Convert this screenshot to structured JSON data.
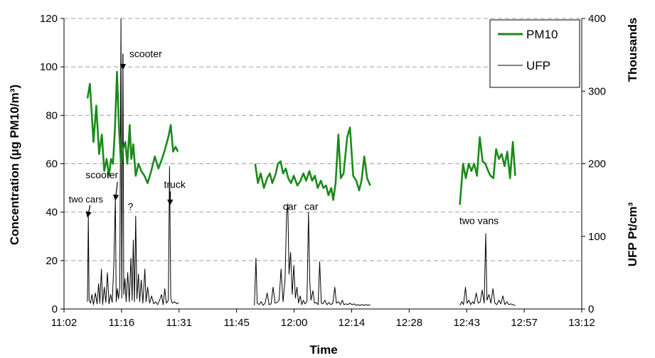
{
  "chart_data": {
    "type": "line",
    "xlabel": "Time",
    "ylabel_left": "Concentration (µg PM10/m³)",
    "ylabel_right": "UFP Pt/cm³",
    "ylabel_right_multiplier": "Thousands",
    "x_ticks": [
      "11:02",
      "11:16",
      "11:31",
      "11:45",
      "12:00",
      "12:14",
      "12:28",
      "12:43",
      "12:57",
      "13:12"
    ],
    "y_left_ticks": [
      "0",
      "20",
      "40",
      "60",
      "80",
      "100",
      "120"
    ],
    "y_right_ticks": [
      "0",
      "100",
      "200",
      "300",
      "400"
    ],
    "xlim_minutes_after_11_02": [
      0,
      130
    ],
    "ylim_left": [
      0,
      120
    ],
    "ylim_right": [
      0,
      400
    ],
    "grid": "horizontal dashed",
    "legend_position": "top-right",
    "legend": [
      {
        "name": "PM10",
        "color": "#1a8a1a"
      },
      {
        "name": "UFP",
        "color": "#000000"
      }
    ],
    "series": [
      {
        "name": "PM10",
        "axis": "left",
        "color": "#1a8a1a",
        "segments": [
          [
            [
              5.9,
              87
            ],
            [
              6.5,
              93
            ],
            [
              7.4,
              69
            ],
            [
              8.1,
              84
            ],
            [
              8.8,
              64
            ],
            [
              9.5,
              72
            ],
            [
              10.1,
              57
            ],
            [
              10.7,
              62
            ],
            [
              11.3,
              55
            ],
            [
              11.8,
              62
            ],
            [
              12.3,
              60
            ],
            [
              12.8,
              75
            ],
            [
              13.3,
              98
            ],
            [
              13.8,
              75
            ],
            [
              14.3,
              60
            ],
            [
              14.8,
              66
            ],
            [
              15.4,
              69
            ],
            [
              15.9,
              60
            ],
            [
              16.5,
              76
            ],
            [
              16.9,
              62
            ],
            [
              17.4,
              68
            ],
            [
              18.0,
              55
            ],
            [
              18.7,
              60
            ],
            [
              19.4,
              57
            ],
            [
              20.2,
              55
            ],
            [
              21.0,
              52
            ],
            [
              21.9,
              57
            ],
            [
              22.8,
              63
            ],
            [
              23.7,
              58
            ],
            [
              24.4,
              61
            ],
            [
              25.2,
              65
            ],
            [
              26.2,
              71
            ],
            [
              26.8,
              76
            ],
            [
              27.4,
              65
            ],
            [
              28.0,
              67
            ],
            [
              28.6,
              65
            ]
          ],
          [
            [
              48.0,
              60
            ],
            [
              48.7,
              52
            ],
            [
              49.4,
              56
            ],
            [
              50.2,
              50
            ],
            [
              51.0,
              54
            ],
            [
              51.7,
              56
            ],
            [
              52.3,
              52
            ],
            [
              53.2,
              56
            ],
            [
              53.7,
              60
            ],
            [
              54.4,
              61
            ],
            [
              55.0,
              56
            ],
            [
              55.7,
              58
            ],
            [
              56.3,
              54
            ],
            [
              57.0,
              52
            ],
            [
              57.7,
              55
            ],
            [
              58.6,
              51
            ],
            [
              59.4,
              53
            ],
            [
              60.1,
              56
            ],
            [
              60.8,
              53
            ],
            [
              61.6,
              57
            ],
            [
              62.3,
              53
            ],
            [
              63.0,
              55
            ],
            [
              63.7,
              50
            ],
            [
              64.5,
              53
            ],
            [
              65.1,
              50
            ],
            [
              65.8,
              51
            ],
            [
              66.4,
              47
            ],
            [
              67.1,
              50
            ],
            [
              67.6,
              45
            ],
            [
              68.2,
              52
            ],
            [
              68.9,
              72
            ],
            [
              69.5,
              54
            ],
            [
              70.2,
              56
            ],
            [
              71.1,
              71
            ],
            [
              71.8,
              75
            ],
            [
              72.6,
              55
            ],
            [
              73.4,
              53
            ],
            [
              74.1,
              49
            ],
            [
              74.7,
              53
            ],
            [
              75.4,
              63
            ],
            [
              76.1,
              54
            ],
            [
              76.9,
              51
            ]
          ],
          [
            [
              99.4,
              43
            ],
            [
              100.2,
              60
            ],
            [
              100.9,
              54
            ],
            [
              101.6,
              60
            ],
            [
              102.3,
              57
            ],
            [
              103.0,
              60
            ],
            [
              103.7,
              55
            ],
            [
              104.4,
              71
            ],
            [
              105.1,
              61
            ],
            [
              105.8,
              60
            ],
            [
              106.5,
              57
            ],
            [
              107.1,
              55
            ],
            [
              107.8,
              54
            ],
            [
              108.5,
              66
            ],
            [
              109.2,
              62
            ],
            [
              109.9,
              64
            ],
            [
              110.6,
              59
            ],
            [
              111.3,
              65
            ],
            [
              112.0,
              54
            ],
            [
              112.7,
              69
            ],
            [
              113.3,
              55
            ]
          ]
        ]
      },
      {
        "name": "UFP",
        "axis": "right",
        "color": "#000000",
        "segments": [
          [
            [
              5.9,
              10
            ],
            [
              6.1,
              128
            ],
            [
              6.3,
              12
            ],
            [
              6.7,
              8
            ],
            [
              7.0,
              20
            ],
            [
              7.4,
              6
            ],
            [
              7.9,
              22
            ],
            [
              8.3,
              7
            ],
            [
              8.7,
              35
            ],
            [
              9.0,
              8
            ],
            [
              9.4,
              55
            ],
            [
              9.7,
              6
            ],
            [
              10.1,
              30
            ],
            [
              10.5,
              9
            ],
            [
              10.9,
              50
            ],
            [
              11.3,
              7
            ],
            [
              11.7,
              20
            ],
            [
              12.1,
              9
            ],
            [
              12.5,
              60
            ],
            [
              12.9,
              152
            ],
            [
              13.1,
              10
            ],
            [
              13.4,
              28
            ],
            [
              13.7,
              14
            ],
            [
              14.0,
              30
            ],
            [
              14.3,
              400
            ],
            [
              14.5,
              15
            ],
            [
              14.8,
              350
            ],
            [
              15.0,
              20
            ],
            [
              15.3,
              42
            ],
            [
              15.6,
              10
            ],
            [
              16.0,
              50
            ],
            [
              16.4,
              10
            ],
            [
              16.8,
              70
            ],
            [
              17.1,
              12
            ],
            [
              17.4,
              95
            ],
            [
              17.7,
              10
            ],
            [
              18.0,
              128
            ],
            [
              18.3,
              14
            ],
            [
              18.7,
              48
            ],
            [
              19.0,
              10
            ],
            [
              19.4,
              40
            ],
            [
              19.8,
              8
            ],
            [
              20.3,
              55
            ],
            [
              20.6,
              10
            ],
            [
              21.0,
              30
            ],
            [
              21.5,
              8
            ],
            [
              22.0,
              18
            ],
            [
              22.5,
              7
            ],
            [
              23.0,
              10
            ],
            [
              23.5,
              6
            ],
            [
              24.0,
              12
            ],
            [
              24.5,
              20
            ],
            [
              24.9,
              6
            ],
            [
              25.3,
              28
            ],
            [
              25.7,
              8
            ],
            [
              26.2,
              12
            ],
            [
              26.5,
              196
            ],
            [
              26.8,
              15
            ],
            [
              27.2,
              8
            ],
            [
              27.8,
              10
            ],
            [
              28.3,
              7
            ],
            [
              28.8,
              9
            ]
          ],
          [
            [
              47.8,
              5
            ],
            [
              48.2,
              70
            ],
            [
              48.5,
              8
            ],
            [
              49.0,
              6
            ],
            [
              49.5,
              10
            ],
            [
              50.0,
              5
            ],
            [
              50.5,
              8
            ],
            [
              51.0,
              22
            ],
            [
              51.5,
              6
            ],
            [
              52.0,
              7
            ],
            [
              52.5,
              30
            ],
            [
              53.0,
              8
            ],
            [
              53.5,
              9
            ],
            [
              54.0,
              12
            ],
            [
              54.5,
              55
            ],
            [
              55.0,
              10
            ],
            [
              55.5,
              40
            ],
            [
              55.9,
              130
            ],
            [
              56.2,
              145
            ],
            [
              56.5,
              48
            ],
            [
              56.9,
              78
            ],
            [
              57.3,
              20
            ],
            [
              57.7,
              60
            ],
            [
              58.1,
              15
            ],
            [
              58.5,
              30
            ],
            [
              58.9,
              8
            ],
            [
              59.3,
              18
            ],
            [
              59.7,
              6
            ],
            [
              60.1,
              12
            ],
            [
              60.5,
              7
            ],
            [
              61.0,
              10
            ],
            [
              61.4,
              133
            ],
            [
              61.7,
              40
            ],
            [
              62.0,
              12
            ],
            [
              62.5,
              25
            ],
            [
              62.9,
              8
            ],
            [
              63.3,
              9
            ],
            [
              63.8,
              6
            ],
            [
              64.2,
              65
            ],
            [
              64.6,
              8
            ],
            [
              65.0,
              7
            ],
            [
              65.5,
              12
            ],
            [
              66.0,
              6
            ],
            [
              66.5,
              9
            ],
            [
              67.0,
              6
            ],
            [
              67.5,
              8
            ],
            [
              68.0,
              30
            ],
            [
              68.4,
              8
            ],
            [
              68.9,
              10
            ],
            [
              69.4,
              6
            ],
            [
              69.9,
              12
            ],
            [
              70.3,
              6
            ],
            [
              70.8,
              7
            ],
            [
              71.3,
              6
            ],
            [
              71.8,
              8
            ],
            [
              72.3,
              6
            ],
            [
              72.8,
              7
            ],
            [
              73.3,
              5
            ],
            [
              73.8,
              6
            ],
            [
              74.3,
              5
            ],
            [
              74.8,
              6
            ],
            [
              75.3,
              5
            ],
            [
              75.8,
              6
            ],
            [
              76.3,
              5
            ],
            [
              76.9,
              6
            ]
          ],
          [
            [
              99.4,
              5
            ],
            [
              99.9,
              10
            ],
            [
              100.3,
              6
            ],
            [
              100.8,
              30
            ],
            [
              101.2,
              8
            ],
            [
              101.7,
              12
            ],
            [
              102.1,
              6
            ],
            [
              102.6,
              10
            ],
            [
              103.0,
              7
            ],
            [
              103.5,
              22
            ],
            [
              104.0,
              8
            ],
            [
              104.5,
              10
            ],
            [
              105.0,
              26
            ],
            [
              105.5,
              8
            ],
            [
              105.9,
              104
            ],
            [
              106.2,
              12
            ],
            [
              106.7,
              20
            ],
            [
              107.2,
              8
            ],
            [
              107.7,
              28
            ],
            [
              108.2,
              8
            ],
            [
              108.7,
              6
            ],
            [
              109.2,
              12
            ],
            [
              109.7,
              7
            ],
            [
              110.2,
              18
            ],
            [
              110.7,
              6
            ],
            [
              111.2,
              10
            ],
            [
              111.7,
              6
            ],
            [
              112.2,
              7
            ],
            [
              112.7,
              6
            ],
            [
              113.3,
              5
            ]
          ]
        ]
      }
    ],
    "annotations": [
      {
        "text": "two cars",
        "x": 5.5,
        "y": 44,
        "arrow_to_x": 5.9,
        "arrow_to_y": 38
      },
      {
        "text": "scooter",
        "x": 9.5,
        "y": 54,
        "arrow_to_x": 12.9,
        "arrow_to_y": 45
      },
      {
        "text": "scooter",
        "x": 20.5,
        "y": 104,
        "arrow_to_x": 14.8,
        "arrow_to_y": 99
      },
      {
        "text": "?",
        "x": 16.7,
        "y": 41
      },
      {
        "text": "truck",
        "x": 27.8,
        "y": 50,
        "arrow_to_x": 26.6,
        "arrow_to_y": 43
      },
      {
        "text": "car",
        "x": 56.7,
        "y": 41
      },
      {
        "text": "car",
        "x": 62.1,
        "y": 41
      },
      {
        "text": "two vans",
        "x": 104.2,
        "y": 35
      }
    ]
  }
}
